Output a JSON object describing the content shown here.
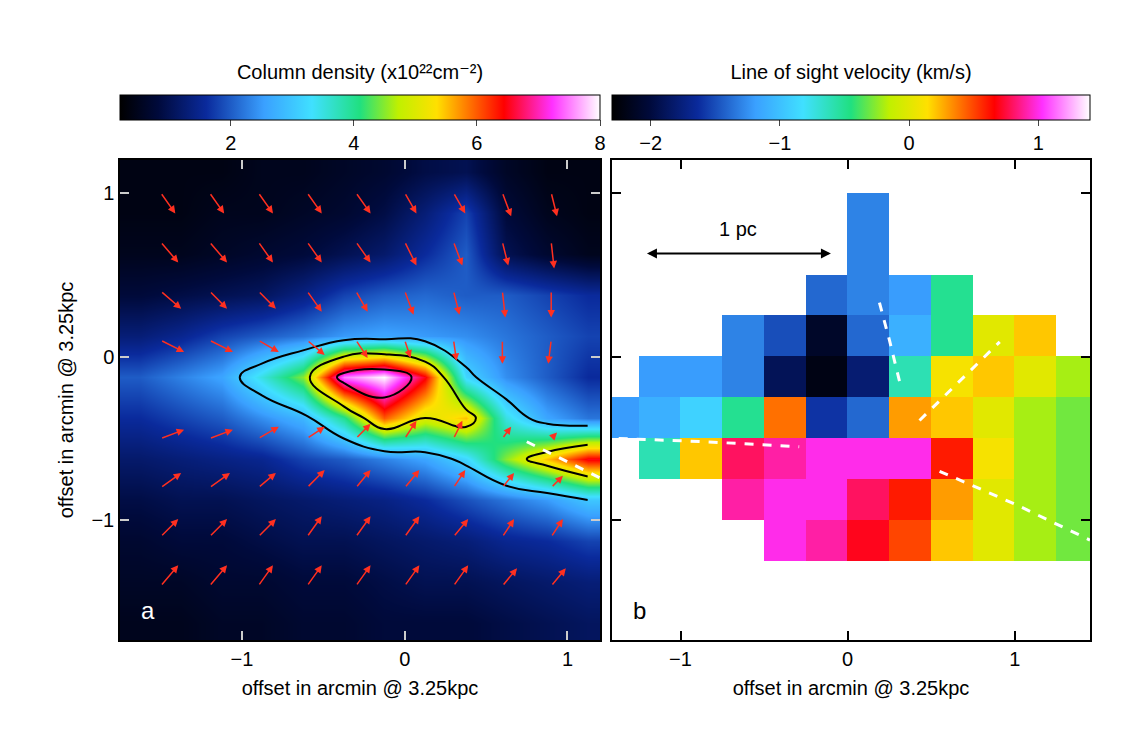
{
  "chart_data": [
    {
      "type": "heatmap",
      "panel_label": "a",
      "colorbar_title": "Column density (x10²²cm⁻²)",
      "x_label": "offset in arcmin @ 3.25kpc",
      "y_label": "offset in arcmin @ 3.25kpc",
      "xlim": [
        -1.75,
        1.2
      ],
      "ylim": [
        -1.73,
        1.2
      ],
      "xticks": [
        -1,
        0,
        1
      ],
      "yticks": [
        -1,
        0,
        1
      ],
      "zlim": [
        0.2,
        8
      ],
      "zticks": [
        2,
        4,
        6,
        8
      ],
      "x": [
        -1.625,
        -1.375,
        -1.125,
        -0.875,
        -0.625,
        -0.375,
        -0.125,
        0.125,
        0.375,
        0.625,
        0.875,
        1.125
      ],
      "y": [
        -1.625,
        -1.375,
        -1.125,
        -0.875,
        -0.625,
        -0.375,
        -0.125,
        0.125,
        0.375,
        0.625,
        0.875,
        1.125
      ],
      "z": [
        [
          0.5,
          0.5,
          0.6,
          0.6,
          0.7,
          0.7,
          0.8,
          0.8,
          0.8,
          0.9,
          1.0,
          1.1
        ],
        [
          0.6,
          0.6,
          0.7,
          0.7,
          0.8,
          0.8,
          0.9,
          1.0,
          1.0,
          1.1,
          1.2,
          1.3
        ],
        [
          0.7,
          0.8,
          0.8,
          0.9,
          1.0,
          1.0,
          1.1,
          1.2,
          1.3,
          1.5,
          1.6,
          1.8
        ],
        [
          0.9,
          1.0,
          1.0,
          1.1,
          1.2,
          1.3,
          1.4,
          1.6,
          1.9,
          2.2,
          2.5,
          3.0
        ],
        [
          1.2,
          1.3,
          1.4,
          1.5,
          1.8,
          2.0,
          2.3,
          2.6,
          3.2,
          4.5,
          5.5,
          6.5
        ],
        [
          1.6,
          1.8,
          2.0,
          2.4,
          2.8,
          4.0,
          6.0,
          5.0,
          5.5,
          3.5,
          2.6,
          2.2
        ],
        [
          2.0,
          2.3,
          2.6,
          3.5,
          4.5,
          7.5,
          8.0,
          6.5,
          3.2,
          2.4,
          2.0,
          1.6
        ],
        [
          1.3,
          1.5,
          1.8,
          2.0,
          2.2,
          2.5,
          2.6,
          2.5,
          2.4,
          2.2,
          2.0,
          1.8
        ],
        [
          0.8,
          0.9,
          1.0,
          1.1,
          1.4,
          1.8,
          2.0,
          2.1,
          2.0,
          2.0,
          1.8,
          1.6
        ],
        [
          0.5,
          0.5,
          0.6,
          0.7,
          0.8,
          1.0,
          1.2,
          1.6,
          2.0,
          1.0,
          0.7,
          0.5
        ],
        [
          0.4,
          0.4,
          0.5,
          0.5,
          0.6,
          0.7,
          0.9,
          1.3,
          1.8,
          0.8,
          0.5,
          0.4
        ],
        [
          0.4,
          0.4,
          0.4,
          0.5,
          0.5,
          0.6,
          0.7,
          0.9,
          1.0,
          0.6,
          0.4,
          0.4
        ]
      ],
      "contour_levels": [
        3,
        5,
        7
      ],
      "arrows": {
        "x": [
          -1.5,
          -1.2,
          -0.9,
          -0.6,
          -0.3,
          0,
          0.3,
          0.6,
          0.9
        ],
        "y": [
          1.0,
          0.7,
          0.4,
          0.1,
          -0.5,
          -0.8,
          -1.1,
          -1.4
        ],
        "u": [
          [
            0.5,
            0.5,
            0.5,
            0.5,
            0.5,
            0.4,
            0.4,
            0.3,
            0.2
          ],
          [
            0.6,
            0.6,
            0.5,
            0.5,
            0.5,
            0.4,
            0.3,
            0.2,
            0.1
          ],
          [
            0.7,
            0.6,
            0.6,
            0.5,
            0.4,
            0.3,
            0.2,
            0.1,
            0.0
          ],
          [
            0.8,
            0.8,
            0.7,
            0.6,
            0.4,
            0.2,
            0.1,
            0.0,
            -0.1
          ],
          [
            0.8,
            0.8,
            0.7,
            0.6,
            0.5,
            0.4,
            0.3,
            0.3,
            0.2
          ],
          [
            0.7,
            0.7,
            0.6,
            0.6,
            0.5,
            0.5,
            0.4,
            0.4,
            0.4
          ],
          [
            0.6,
            0.6,
            0.6,
            0.5,
            0.5,
            0.5,
            0.5,
            0.4,
            0.4
          ],
          [
            0.6,
            0.6,
            0.5,
            0.5,
            0.5,
            0.5,
            0.5,
            0.5,
            0.5
          ]
        ],
        "v": [
          [
            -0.7,
            -0.7,
            -0.7,
            -0.7,
            -0.7,
            -0.7,
            -0.7,
            -0.8,
            -0.8
          ],
          [
            -0.7,
            -0.7,
            -0.7,
            -0.7,
            -0.7,
            -0.8,
            -0.8,
            -0.8,
            -0.9
          ],
          [
            -0.6,
            -0.6,
            -0.6,
            -0.7,
            -0.7,
            -0.8,
            -0.8,
            -0.9,
            -0.9
          ],
          [
            -0.4,
            -0.4,
            -0.4,
            -0.5,
            -0.6,
            -0.6,
            -0.7,
            -0.8,
            -0.8
          ],
          [
            0.3,
            0.3,
            0.4,
            0.4,
            0.5,
            0.6,
            0.6,
            0.4,
            0.2
          ],
          [
            0.5,
            0.5,
            0.5,
            0.6,
            0.6,
            0.6,
            0.6,
            0.5,
            0.4
          ],
          [
            0.6,
            0.6,
            0.6,
            0.7,
            0.7,
            0.7,
            0.6,
            0.6,
            0.6
          ],
          [
            0.7,
            0.7,
            0.7,
            0.7,
            0.7,
            0.7,
            0.7,
            0.6,
            0.6
          ]
        ]
      },
      "spines": [
        {
          "x": [
            0.75,
            1.2
          ],
          "y": [
            -0.52,
            -0.74
          ]
        }
      ]
    },
    {
      "type": "heatmap",
      "panel_label": "b",
      "colorbar_title": "Line of sight velocity (km/s)",
      "x_label": "offset in arcmin @ 3.25kpc",
      "xlim": [
        -1.41,
        1.45
      ],
      "ylim": [
        -1.73,
        1.2
      ],
      "xticks": [
        -1,
        0,
        1
      ],
      "yticks": [
        -1,
        0,
        1
      ],
      "tick_labels": "x",
      "zlim": [
        -2.3,
        1.4
      ],
      "zticks": [
        -2,
        -1,
        0,
        1
      ],
      "x": [
        -1.375,
        -1.125,
        -0.875,
        -0.625,
        -0.375,
        -0.125,
        0.125,
        0.375,
        0.625,
        0.875,
        1.125,
        1.375
      ],
      "y": [
        -1.625,
        -1.375,
        -1.125,
        -0.875,
        -0.625,
        -0.375,
        -0.125,
        0.125,
        0.375,
        0.625,
        0.875,
        1.125
      ],
      "z": [
        [
          null,
          null,
          null,
          null,
          null,
          null,
          null,
          null,
          null,
          null,
          null,
          null
        ],
        [
          null,
          null,
          null,
          null,
          null,
          null,
          null,
          null,
          null,
          null,
          null,
          null
        ],
        [
          null,
          null,
          null,
          null,
          1.0,
          0.9,
          0.7,
          0.5,
          0.2,
          0.0,
          -0.2,
          -0.3
        ],
        [
          null,
          null,
          null,
          0.9,
          1.0,
          1.0,
          0.8,
          0.6,
          0.3,
          0.0,
          -0.2,
          -0.3
        ],
        [
          null,
          -0.6,
          0.2,
          0.8,
          0.9,
          1.0,
          1.0,
          1.0,
          0.6,
          0.1,
          -0.2,
          -0.3
        ],
        [
          -1.2,
          -1.1,
          -0.9,
          -0.5,
          0.4,
          -1.6,
          -1.4,
          0.3,
          0.2,
          0.0,
          -0.2,
          -0.3
        ],
        [
          null,
          -1.2,
          -1.2,
          -1.3,
          -1.9,
          -2.2,
          -1.8,
          -0.6,
          0.1,
          0.2,
          0.0,
          -0.2
        ],
        [
          null,
          null,
          null,
          -1.3,
          -1.5,
          -2.1,
          -1.4,
          -1.1,
          -0.5,
          0.0,
          0.2,
          null
        ],
        [
          null,
          null,
          null,
          null,
          null,
          -1.4,
          -1.3,
          -1.2,
          -0.5,
          null,
          null,
          null
        ],
        [
          null,
          null,
          null,
          null,
          null,
          null,
          -1.3,
          null,
          null,
          null,
          null,
          null
        ],
        [
          null,
          null,
          null,
          null,
          null,
          null,
          -1.3,
          null,
          null,
          null,
          null,
          null
        ],
        [
          null,
          null,
          null,
          null,
          null,
          null,
          null,
          null,
          null,
          null,
          null,
          null
        ]
      ],
      "spines": [
        {
          "x": [
            -1.37,
            -0.85,
            -0.29
          ],
          "y": [
            -0.5,
            -0.52,
            -0.55
          ]
        },
        {
          "x": [
            0.55,
            1.0,
            1.45
          ],
          "y": [
            -0.7,
            -0.9,
            -1.12
          ]
        },
        {
          "x": [
            0.31,
            0.25,
            0.19
          ],
          "y": [
            -0.15,
            0.1,
            0.33
          ]
        },
        {
          "x": [
            0.43,
            0.67,
            0.91
          ],
          "y": [
            -0.39,
            -0.15,
            0.09
          ]
        }
      ],
      "scale_bar": {
        "label": "1 pc",
        "x": [
          -1.21,
          -0.1
        ],
        "y": 0.63
      }
    }
  ]
}
